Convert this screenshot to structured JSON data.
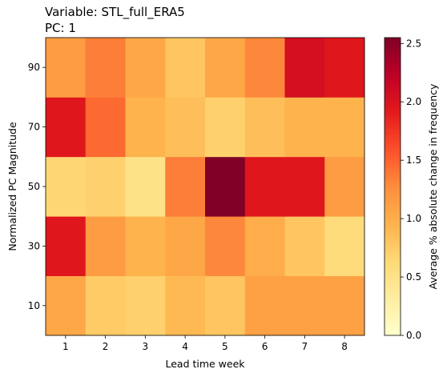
{
  "chart_data": {
    "type": "heatmap",
    "title_lines": [
      "Variable: STL_full_ERA5",
      "PC: 1"
    ],
    "xlabel": "Lead time week",
    "ylabel": "Normalized PC Magnitude",
    "colorbar_label": "Average % absolute change in frequency",
    "colormap": "YlOrRd",
    "colorbar_range": [
      0.0,
      2.55
    ],
    "colorbar_ticks": [
      "0.0",
      "0.5",
      "1.0",
      "1.5",
      "2.0",
      "2.5"
    ],
    "x_categories": [
      "1",
      "2",
      "3",
      "4",
      "5",
      "6",
      "7",
      "8"
    ],
    "y_categories": [
      "10",
      "30",
      "50",
      "70",
      "90"
    ],
    "values": [
      [
        1.05,
        0.75,
        0.7,
        0.9,
        0.8,
        1.1,
        1.1,
        1.1
      ],
      [
        1.95,
        1.15,
        0.95,
        1.05,
        1.3,
        1.0,
        0.8,
        0.6
      ],
      [
        0.65,
        0.7,
        0.5,
        1.35,
        2.55,
        1.95,
        1.95,
        1.15
      ],
      [
        1.95,
        1.45,
        0.95,
        0.85,
        0.7,
        0.85,
        0.95,
        0.95
      ],
      [
        1.15,
        1.35,
        1.05,
        0.8,
        1.05,
        1.3,
        2.05,
        1.95
      ]
    ]
  }
}
